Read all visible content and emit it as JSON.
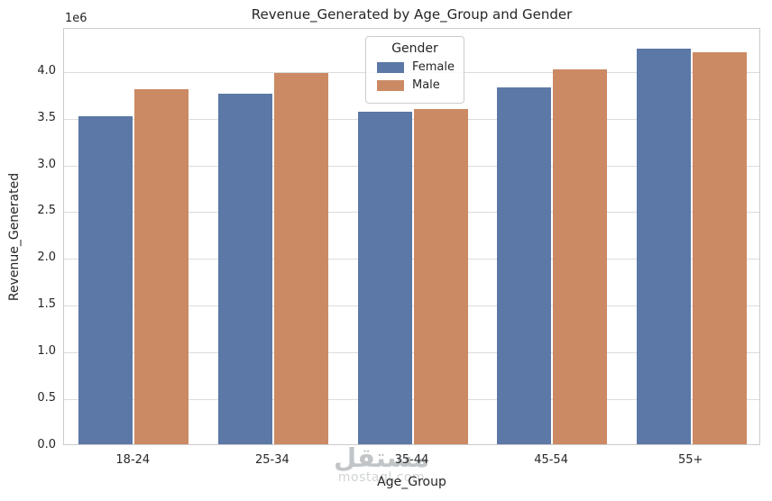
{
  "chart_data": {
    "type": "bar",
    "title": "Revenue_Generated by Age_Group and Gender",
    "xlabel": "Age_Group",
    "ylabel": "Revenue_Generated",
    "offset_text": "1e6",
    "categories": [
      "18-24",
      "25-34",
      "35-44",
      "45-54",
      "55+"
    ],
    "series": [
      {
        "name": "Female",
        "color": "#5b78a6",
        "values": [
          3510000,
          3750000,
          3550000,
          3810000,
          4230000
        ]
      },
      {
        "name": "Male",
        "color": "#cb8a63",
        "values": [
          3800000,
          3970000,
          3580000,
          4010000,
          4190000
        ]
      }
    ],
    "legend": {
      "title": "Gender",
      "position": "upper center"
    },
    "ylim": [
      0,
      4460000
    ],
    "yticks": [
      0,
      500000,
      1000000,
      1500000,
      2000000,
      2500000,
      3000000,
      3500000,
      4000000
    ],
    "ytick_labels": [
      "0.0",
      "0.5",
      "1.0",
      "1.5",
      "2.0",
      "2.5",
      "3.0",
      "3.5",
      "4.0"
    ],
    "grid": true
  },
  "watermark": {
    "arabic": "مستقل",
    "latin": "mostaql.com"
  },
  "colors": {
    "female_bar": "#5b78a6",
    "male_bar": "#cb8a63",
    "gridline": "#dcdcdc",
    "spine": "#cbcbcb",
    "text": "#262626",
    "watermark": "#9aa0a4"
  }
}
